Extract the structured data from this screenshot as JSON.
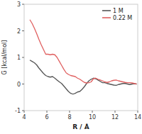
{
  "chart_data": {
    "type": "line",
    "xlabel": "R / Å",
    "ylabel": "G [kcal/mol]",
    "x": [
      4.5,
      4.7,
      4.9,
      5.1,
      5.3,
      5.5,
      5.7,
      5.9,
      6.1,
      6.3,
      6.5,
      6.7,
      6.9,
      7.1,
      7.3,
      7.5,
      7.7,
      7.9,
      8.1,
      8.3,
      8.5,
      8.7,
      8.9,
      9.1,
      9.3,
      9.5,
      9.7,
      9.9,
      10.1,
      10.3,
      10.5,
      10.7,
      10.9,
      11.1,
      11.3,
      11.5,
      11.7,
      11.9,
      12.1,
      12.3,
      12.5,
      12.7,
      12.9,
      13.1,
      13.3,
      13.5,
      13.7,
      13.9
    ],
    "series": [
      {
        "name": "1 M",
        "color": "#555555",
        "values": [
          0.9,
          0.85,
          0.8,
          0.72,
          0.6,
          0.5,
          0.4,
          0.32,
          0.28,
          0.26,
          0.28,
          0.22,
          0.15,
          0.08,
          0.02,
          -0.08,
          -0.18,
          -0.28,
          -0.35,
          -0.38,
          -0.35,
          -0.3,
          -0.28,
          -0.2,
          -0.1,
          0.02,
          0.12,
          0.18,
          0.22,
          0.2,
          0.15,
          0.1,
          0.05,
          0.05,
          0.02,
          0.0,
          -0.02,
          -0.04,
          -0.05,
          -0.02,
          0.0,
          0.02,
          0.02,
          0.0,
          -0.02,
          0.0,
          0.01,
          0.0
        ]
      },
      {
        "name": "0.22 M",
        "color": "#e06060",
        "values": [
          2.42,
          2.28,
          2.1,
          1.9,
          1.68,
          1.48,
          1.3,
          1.12,
          1.12,
          1.1,
          1.12,
          1.1,
          1.0,
          0.85,
          0.7,
          0.55,
          0.42,
          0.36,
          0.32,
          0.3,
          0.28,
          0.22,
          0.18,
          0.12,
          0.06,
          0.04,
          0.05,
          0.08,
          0.2,
          0.22,
          0.18,
          0.15,
          0.12,
          0.08,
          0.06,
          0.08,
          0.12,
          0.14,
          0.15,
          0.12,
          0.1,
          0.08,
          0.06,
          0.05,
          0.05,
          0.04,
          0.02,
          0.0
        ]
      }
    ],
    "xlim": [
      4,
      14
    ],
    "ylim": [
      -1,
      3
    ],
    "xticks": [
      4,
      6,
      8,
      10,
      12,
      14
    ],
    "yticks": [
      -1,
      0,
      1,
      2,
      3
    ],
    "legend": "upper right"
  }
}
